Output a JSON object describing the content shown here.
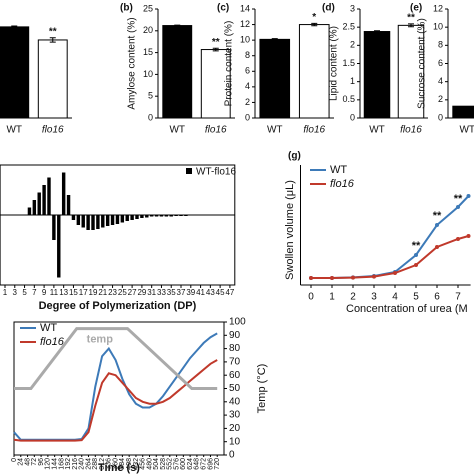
{
  "chart_data": [
    {
      "type": "bar",
      "categories": [
        "WT",
        "flo16"
      ],
      "values": [
        20.9,
        17.9
      ],
      "errors": [
        0.2,
        0.5
      ],
      "colors": [
        "#000000",
        "#ffffff"
      ],
      "ylim": [
        0,
        25
      ],
      "annotations": [
        {
          "category": "flo16",
          "text": "**"
        }
      ]
    },
    {
      "type": "bar",
      "label": "(b)",
      "ylabel": "Amylose content (%)",
      "categories": [
        "WT",
        "flo16"
      ],
      "values": [
        21.2,
        15.7
      ],
      "errors": [
        0.1,
        0.3
      ],
      "colors": [
        "#000000",
        "#ffffff"
      ],
      "ylim": [
        0,
        25
      ],
      "yticks": [
        0,
        5,
        10,
        15,
        20,
        25
      ],
      "annotations": [
        {
          "category": "flo16",
          "text": "**"
        }
      ]
    },
    {
      "type": "bar",
      "label": "(c)",
      "ylabel": "Protein content (%)",
      "categories": [
        "WT",
        "flo16"
      ],
      "values": [
        10.1,
        12
      ],
      "errors": [
        0.1,
        0.15
      ],
      "colors": [
        "#000000",
        "#ffffff"
      ],
      "ylim": [
        0,
        14
      ],
      "yticks": [
        0,
        2,
        4,
        6,
        8,
        10,
        12,
        14
      ],
      "annotations": [
        {
          "category": "flo16",
          "text": "*"
        }
      ]
    },
    {
      "type": "bar",
      "label": "(d)",
      "ylabel": "Lipid content (%)",
      "categories": [
        "WT",
        "flo16"
      ],
      "values": [
        2.38,
        2.55
      ],
      "errors": [
        0.02,
        0.04
      ],
      "colors": [
        "#000000",
        "#ffffff"
      ],
      "ylim": [
        0,
        3
      ],
      "yticks": [
        0,
        0.5,
        1,
        1.5,
        2,
        2.5,
        3
      ],
      "annotations": [
        {
          "category": "flo16",
          "text": "**"
        }
      ]
    },
    {
      "type": "bar",
      "label": "(e)",
      "ylabel": "Sucrose content (%)",
      "categories": [
        "WT"
      ],
      "values": [
        1.3
      ],
      "colors": [
        "#000000"
      ],
      "ylim": [
        0,
        12
      ],
      "yticks": [
        0,
        2,
        4,
        6,
        8,
        10,
        12
      ]
    },
    {
      "type": "bar",
      "xlabel": "Degree of Polymerization (DP)",
      "series_name": "WT-flo16",
      "color": "#000000",
      "x": [
        1,
        2,
        3,
        4,
        5,
        6,
        7,
        8,
        9,
        10,
        11,
        12,
        13,
        14,
        15,
        16,
        17,
        18,
        19,
        20,
        21,
        22,
        23,
        24,
        25,
        26,
        27,
        28,
        29,
        30,
        31,
        32,
        33,
        34,
        35,
        36,
        37,
        38,
        39,
        40,
        41,
        42,
        43,
        44,
        45,
        46,
        47
      ],
      "values": [
        0,
        0,
        0,
        0,
        0,
        0.15,
        0.3,
        0.45,
        0.6,
        0.75,
        -0.5,
        -1.25,
        0.85,
        0.4,
        -0.1,
        -0.2,
        -0.25,
        -0.3,
        -0.3,
        -0.28,
        -0.25,
        -0.22,
        -0.2,
        -0.18,
        -0.15,
        -0.12,
        -0.1,
        -0.08,
        -0.06,
        -0.05,
        -0.03,
        -0.03,
        -0.03,
        -0.03,
        -0.03,
        -0.02,
        -0.02,
        -0.02,
        -0.01,
        -0.01,
        -0.01,
        0,
        0,
        0,
        0,
        0,
        0
      ],
      "xlim": [
        0,
        48
      ],
      "ylim": [
        -1.4,
        1
      ],
      "xticks": [
        1,
        3,
        5,
        7,
        9,
        11,
        13,
        15,
        17,
        19,
        21,
        23,
        25,
        27,
        29,
        31,
        33,
        35,
        37,
        39,
        41,
        43,
        45,
        47
      ]
    },
    {
      "type": "line",
      "label": "(g)",
      "ylabel": "Swollen volume (μL)",
      "xlabel": "Concentration of urea (M",
      "x": [
        0,
        1,
        2,
        3,
        4,
        5,
        6,
        7,
        7.5
      ],
      "xlim": [
        -0.5,
        7.6
      ],
      "ylim": [
        0,
        450
      ],
      "xticks": [
        0,
        1,
        2,
        3,
        4,
        5,
        6,
        7
      ],
      "series": [
        {
          "name": "WT",
          "color": "#3d7ab8",
          "values": [
            35,
            35,
            38,
            45,
            65,
            150,
            300,
            390,
            445
          ]
        },
        {
          "name": "flo16",
          "color": "#c0392b",
          "values": [
            35,
            35,
            37,
            42,
            60,
            100,
            190,
            230,
            245
          ]
        }
      ],
      "annotations": [
        {
          "x": 5,
          "y": 195,
          "text": "**"
        },
        {
          "x": 6,
          "y": 345,
          "text": "**"
        },
        {
          "x": 7,
          "y": 430,
          "text": "**"
        }
      ]
    },
    {
      "type": "line",
      "xlabel": "Time (s)",
      "y2label": "Temp (°C)",
      "x": [
        0,
        24,
        48,
        72,
        96,
        120,
        144,
        168,
        192,
        216,
        240,
        264,
        288,
        312,
        336,
        360,
        384,
        408,
        432,
        456,
        480,
        504,
        528,
        552,
        576,
        600,
        624,
        648,
        672,
        696,
        720
      ],
      "xlim": [
        0,
        744
      ],
      "ylim": [
        0,
        3500
      ],
      "y2lim": [
        0,
        100
      ],
      "xticks": [
        0,
        24,
        48,
        72,
        96,
        120,
        144,
        168,
        192,
        216,
        240,
        264,
        288,
        312,
        336,
        360,
        384,
        408,
        432,
        456,
        480,
        504,
        528,
        552,
        576,
        600,
        624,
        648,
        672,
        696,
        720
      ],
      "y2ticks": [
        0,
        10,
        20,
        30,
        40,
        50,
        60,
        70,
        80,
        90,
        100
      ],
      "series": [
        {
          "name": "WT",
          "color": "#3d7ab8",
          "values": [
            600,
            400,
            400,
            400,
            400,
            400,
            400,
            400,
            400,
            400,
            420,
            700,
            1800,
            2600,
            2800,
            2500,
            2000,
            1600,
            1350,
            1250,
            1250,
            1350,
            1550,
            1800,
            2050,
            2300,
            2550,
            2750,
            2950,
            3100,
            3200
          ]
        },
        {
          "name": "flo16",
          "color": "#c0392b",
          "values": [
            400,
            380,
            380,
            380,
            380,
            380,
            380,
            380,
            380,
            380,
            390,
            600,
            1300,
            1900,
            2150,
            2100,
            1900,
            1700,
            1500,
            1400,
            1350,
            1350,
            1400,
            1500,
            1650,
            1800,
            1950,
            2100,
            2250,
            2400,
            2500
          ]
        },
        {
          "name": "temp",
          "color": "#aaaaaa",
          "axis": "y2",
          "x": [
            0,
            60,
            222,
            402,
            630,
            720
          ],
          "values": [
            50,
            50,
            95,
            95,
            50,
            50
          ]
        }
      ]
    }
  ]
}
